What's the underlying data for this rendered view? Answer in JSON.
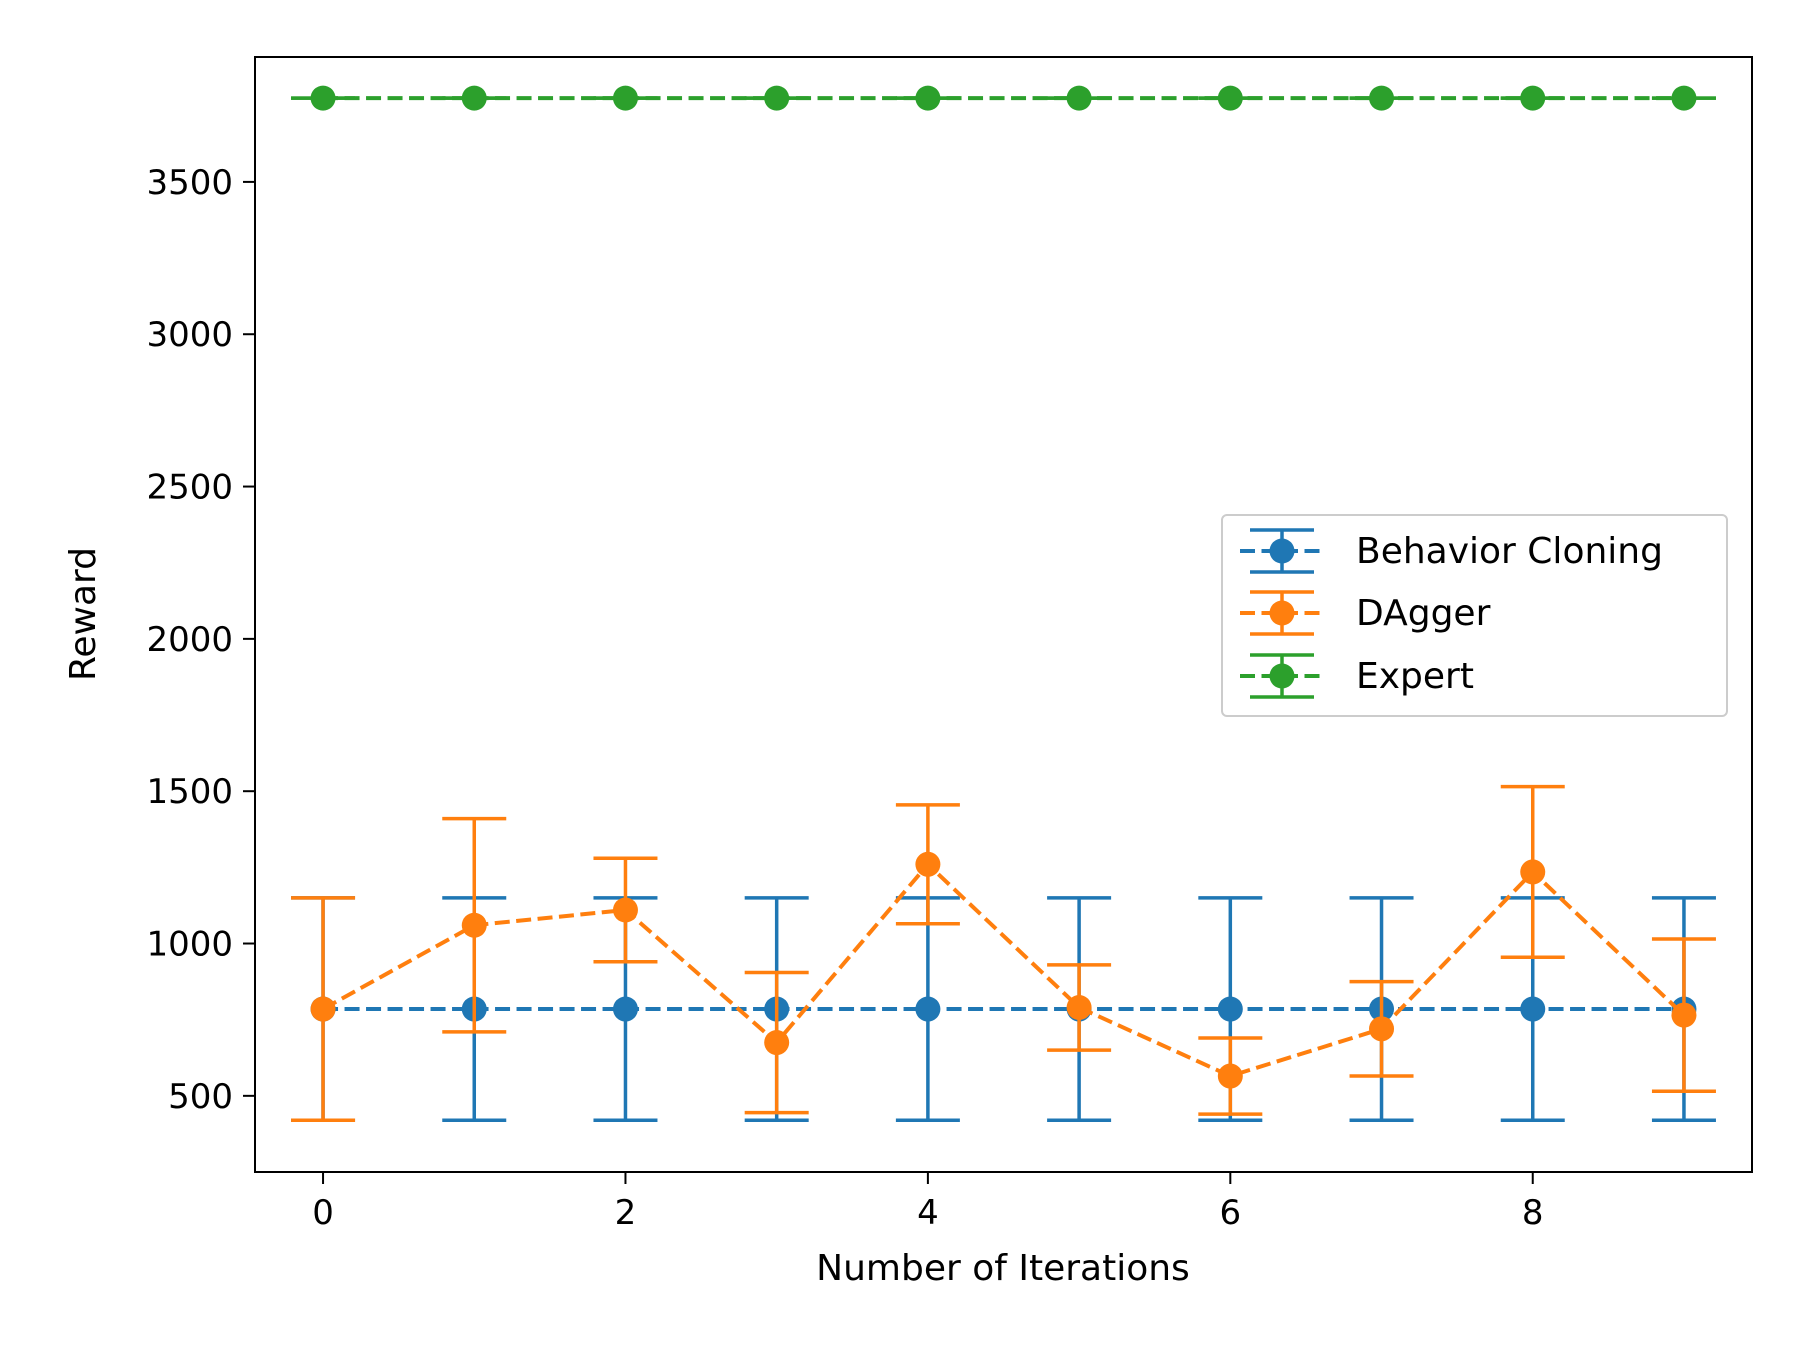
{
  "chart_data": {
    "type": "line",
    "title": "",
    "xlabel": "Number of Iterations",
    "ylabel": "Reward",
    "xlim": [
      -0.45,
      9.45
    ],
    "ylim": [
      250,
      3910
    ],
    "xticks": [
      0,
      2,
      4,
      6,
      8
    ],
    "yticks": [
      500,
      1000,
      1500,
      2000,
      2500,
      3000,
      3500
    ],
    "grid": false,
    "legend_position": "center-right",
    "x": [
      0,
      1,
      2,
      3,
      4,
      5,
      6,
      7,
      8,
      9
    ],
    "series": [
      {
        "name": "Behavior Cloning",
        "color": "#1f77b4",
        "line_style": "dashed",
        "marker": "circle",
        "values": [
          785,
          785,
          785,
          785,
          785,
          785,
          785,
          785,
          785,
          785
        ],
        "error": [
          365,
          365,
          365,
          365,
          365,
          365,
          365,
          365,
          365,
          365
        ]
      },
      {
        "name": "DAgger",
        "color": "#ff7f0e",
        "line_style": "dashed",
        "marker": "circle",
        "values": [
          785,
          1060,
          1110,
          675,
          1260,
          790,
          565,
          720,
          1235,
          765
        ],
        "error": [
          365,
          350,
          170,
          230,
          195,
          140,
          125,
          155,
          280,
          250
        ]
      },
      {
        "name": "Expert",
        "color": "#2ca02c",
        "line_style": "dashed",
        "marker": "circle",
        "values": [
          3775,
          3775,
          3775,
          3775,
          3775,
          3775,
          3775,
          3775,
          3775,
          3775
        ],
        "error": [
          0,
          0,
          0,
          0,
          0,
          0,
          0,
          0,
          0,
          0
        ]
      }
    ]
  }
}
